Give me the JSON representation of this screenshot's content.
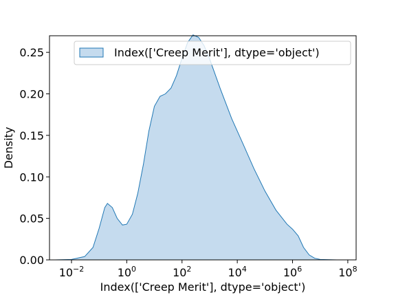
{
  "chart_data": {
    "type": "area",
    "title": "",
    "xlabel": "Index(['Creep Merit'], dtype='object')",
    "ylabel": "Density",
    "x_scale": "log",
    "xlim": [
      0.0016,
      200000000
    ],
    "ylim": [
      0,
      0.27
    ],
    "x_ticks": [
      {
        "value": 0.01,
        "base": "10",
        "exp": "−2"
      },
      {
        "value": 1,
        "base": "10",
        "exp": "0"
      },
      {
        "value": 100,
        "base": "10",
        "exp": "2"
      },
      {
        "value": 10000,
        "base": "10",
        "exp": "4"
      },
      {
        "value": 1000000,
        "base": "10",
        "exp": "6"
      },
      {
        "value": 100000000,
        "base": "10",
        "exp": "8"
      }
    ],
    "y_ticks": [
      {
        "value": 0.0,
        "label": "0.00"
      },
      {
        "value": 0.05,
        "label": "0.05"
      },
      {
        "value": 0.1,
        "label": "0.10"
      },
      {
        "value": 0.15,
        "label": "0.15"
      },
      {
        "value": 0.2,
        "label": "0.20"
      },
      {
        "value": 0.25,
        "label": "0.25"
      }
    ],
    "legend": {
      "position": "top-right",
      "label": "Index(['Creep Merit'], dtype='object')"
    },
    "grid": false,
    "series": [
      {
        "name": "Index(['Creep Merit'], dtype='object')",
        "color": "#1f77b4",
        "fill": "#c5dbee",
        "points": [
          [
            0.0025,
            0.0
          ],
          [
            0.01,
            0.0005
          ],
          [
            0.03,
            0.004
          ],
          [
            0.06,
            0.015
          ],
          [
            0.1,
            0.038
          ],
          [
            0.16,
            0.063
          ],
          [
            0.2,
            0.068
          ],
          [
            0.3,
            0.063
          ],
          [
            0.45,
            0.05
          ],
          [
            0.7,
            0.042
          ],
          [
            1.0,
            0.043
          ],
          [
            1.6,
            0.055
          ],
          [
            2.5,
            0.08
          ],
          [
            4.0,
            0.115
          ],
          [
            6.3,
            0.155
          ],
          [
            10,
            0.185
          ],
          [
            16,
            0.197
          ],
          [
            25,
            0.2
          ],
          [
            40,
            0.207
          ],
          [
            63,
            0.222
          ],
          [
            100,
            0.243
          ],
          [
            160,
            0.262
          ],
          [
            250,
            0.271
          ],
          [
            400,
            0.268
          ],
          [
            630,
            0.258
          ],
          [
            1000,
            0.242
          ],
          [
            2500,
            0.205
          ],
          [
            6300,
            0.17
          ],
          [
            16000,
            0.14
          ],
          [
            40000,
            0.11
          ],
          [
            100000,
            0.083
          ],
          [
            250000,
            0.06
          ],
          [
            630000,
            0.043
          ],
          [
            1000000,
            0.037
          ],
          [
            1600000,
            0.029
          ],
          [
            2500000,
            0.015
          ],
          [
            4000000,
            0.006
          ],
          [
            6300000,
            0.002
          ],
          [
            10000000,
            0.0005
          ],
          [
            40000000,
            0.0
          ]
        ]
      }
    ]
  }
}
